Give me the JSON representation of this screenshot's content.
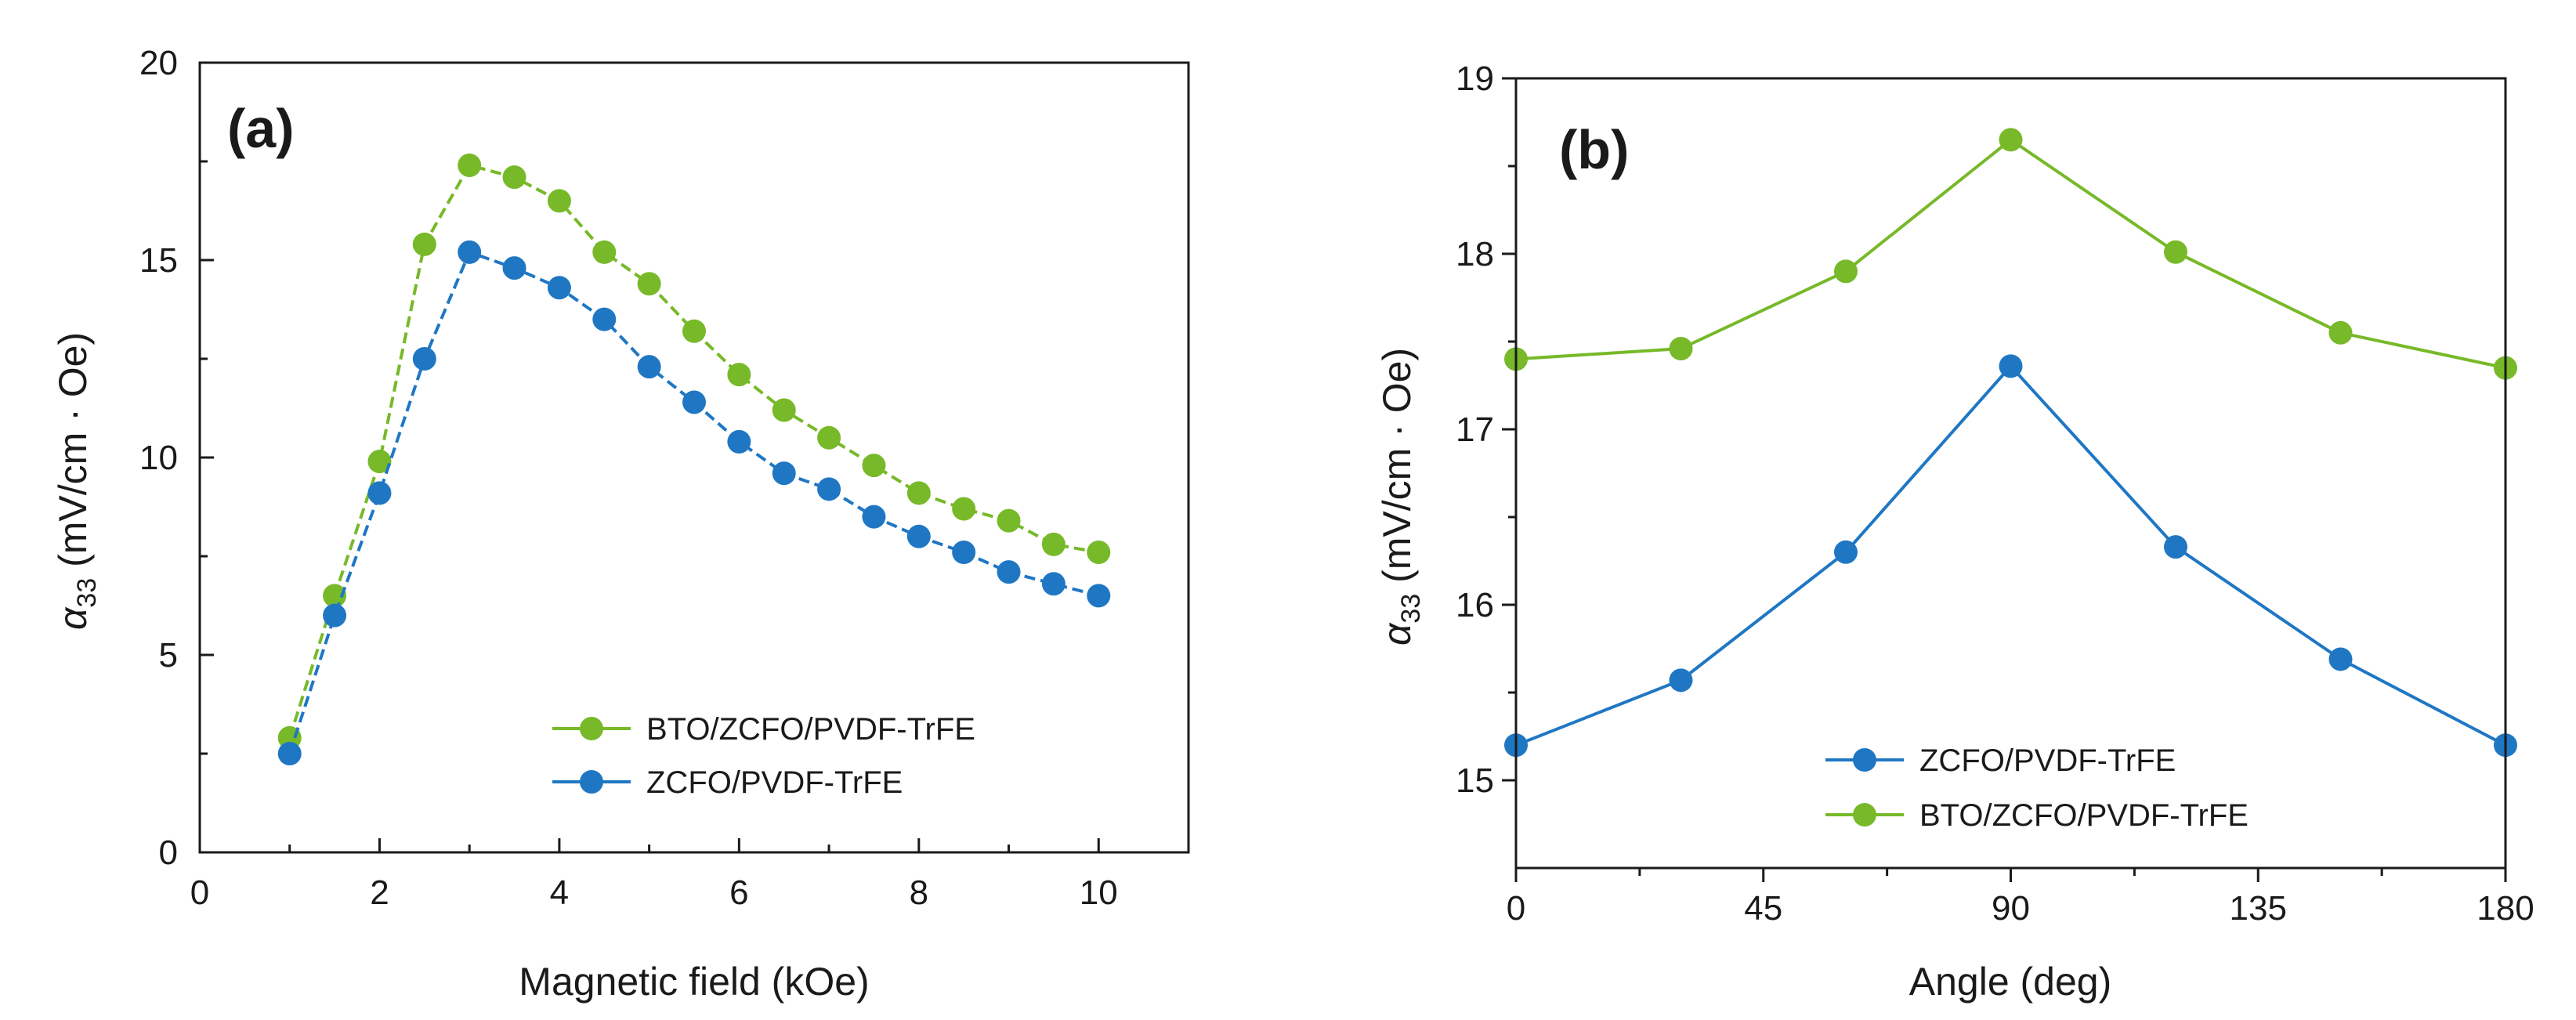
{
  "colors": {
    "green": "#77b929",
    "blue": "#1f77c4",
    "axis": "#1a1a1a"
  },
  "chart_data": [
    {
      "type": "line",
      "panel_label": "(a)",
      "xlabel": "Magnetic field (kOe)",
      "ylabel_symbol": "α",
      "ylabel_sub": "33",
      "ylabel_unit": " (mV/cm · Oe)",
      "xlim": [
        0,
        11
      ],
      "ylim": [
        0,
        20
      ],
      "xticks": [
        "0",
        "2",
        "4",
        "6",
        "8",
        "10"
      ],
      "xtick_values": [
        0,
        2,
        4,
        6,
        8,
        10
      ],
      "yticks": [
        "0",
        "5",
        "10",
        "15",
        "20"
      ],
      "ytick_values": [
        0,
        5,
        10,
        15,
        20
      ],
      "legend_position": "lower-right",
      "series": [
        {
          "name": "BTO/ZCFO/PVDF-TrFE",
          "color": "#77b929",
          "x": [
            1,
            1.5,
            2,
            2.5,
            3,
            3.5,
            4,
            4.5,
            5,
            5.5,
            6,
            6.5,
            7,
            7.5,
            8,
            8.5,
            9,
            9.5,
            10
          ],
          "y": [
            2.9,
            6.5,
            9.9,
            15.4,
            17.4,
            17.1,
            16.5,
            15.2,
            14.4,
            13.2,
            12.1,
            11.2,
            10.5,
            9.8,
            9.1,
            8.7,
            8.4,
            7.8,
            7.6
          ]
        },
        {
          "name": "ZCFO/PVDF-TrFE",
          "color": "#1f77c4",
          "x": [
            1,
            1.5,
            2,
            2.5,
            3,
            3.5,
            4,
            4.5,
            5,
            5.5,
            6,
            6.5,
            7,
            7.5,
            8,
            8.5,
            9,
            9.5,
            10
          ],
          "y": [
            2.5,
            6.0,
            9.1,
            12.5,
            15.2,
            14.8,
            14.3,
            13.5,
            12.3,
            11.4,
            10.4,
            9.6,
            9.2,
            8.5,
            8.0,
            7.6,
            7.1,
            6.8,
            6.5
          ]
        }
      ]
    },
    {
      "type": "line",
      "panel_label": "(b)",
      "xlabel": "Angle (deg)",
      "ylabel_symbol": "α",
      "ylabel_sub": "33",
      "ylabel_unit": " (mV/cm · Oe)",
      "xlim": [
        0,
        180
      ],
      "ylim": [
        14.5,
        19
      ],
      "xticks": [
        "0",
        "45",
        "90",
        "135",
        "180"
      ],
      "xtick_values": [
        0,
        45,
        90,
        135,
        180
      ],
      "yticks": [
        "15",
        "16",
        "17",
        "18",
        "19"
      ],
      "ytick_values": [
        15,
        16,
        17,
        18,
        19
      ],
      "legend_position": "lower-right",
      "series": [
        {
          "name": "ZCFO/PVDF-TrFE",
          "color": "#1f77c4",
          "x": [
            0,
            30,
            60,
            90,
            120,
            150,
            180
          ],
          "y": [
            15.2,
            15.57,
            16.3,
            17.36,
            16.33,
            15.69,
            15.2
          ]
        },
        {
          "name": "BTO/ZCFO/PVDF-TrFE",
          "color": "#77b929",
          "x": [
            0,
            30,
            60,
            90,
            120,
            150,
            180
          ],
          "y": [
            17.4,
            17.46,
            17.9,
            18.65,
            18.01,
            17.55,
            17.35
          ]
        }
      ]
    }
  ]
}
